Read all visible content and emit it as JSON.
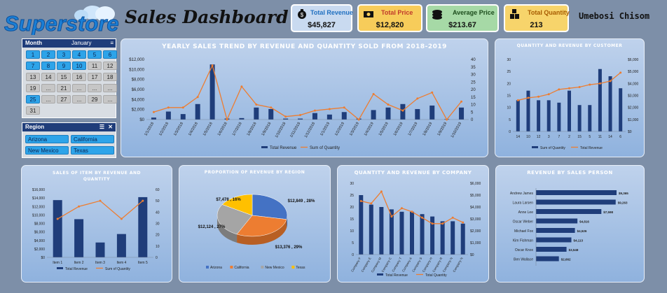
{
  "header": {
    "logo_text": "Superstore",
    "title": "Sales Dashboard",
    "author": "Umebosi Chisom"
  },
  "kpis": [
    {
      "label": "Total Revenue",
      "value": "$45,827",
      "color": "#1f6fc0",
      "bg": "#c9daf0"
    },
    {
      "label": "Total Price",
      "value": "$12,820",
      "color": "#c0392b",
      "bg": "#f7cc5a"
    },
    {
      "label": "Average Price",
      "value": "$213.67",
      "color": "#1c4c1c",
      "bg": "#a6d9a6"
    },
    {
      "label": "Total Quantity",
      "value": "213",
      "color": "#a75b00",
      "bg": "#f7d46b"
    }
  ],
  "month_slicer": {
    "title": "Month",
    "selected": "January",
    "days": [
      "1",
      "2",
      "3",
      "4",
      "5",
      "6",
      "7",
      "8",
      "9",
      "10",
      "11",
      "12",
      "13",
      "14",
      "15",
      "16",
      "17",
      "18",
      "19",
      "...",
      "21",
      "...",
      "...",
      "...",
      "25",
      "...",
      "27",
      "...",
      "29",
      "...",
      "31"
    ],
    "active": [
      0,
      1,
      2,
      3,
      4,
      5,
      6,
      7,
      8,
      9,
      24
    ]
  },
  "region_slicer": {
    "title": "Region",
    "items": [
      "Arizona",
      "California",
      "New Mexico",
      "Texas"
    ]
  },
  "charts": {
    "yearly": {
      "title": "YEARLY SALES TREND BY REVENUE AND QUANTITY SOLD FROM 2018-2019",
      "legend": [
        "Total Revenue",
        "Sum of Quantity"
      ],
      "y_ticks": [
        "$12,000",
        "$10,000",
        "$8,000",
        "$6,000",
        "$4,000",
        "$2,000",
        "$0"
      ],
      "y2_ticks": [
        "40",
        "35",
        "30",
        "25",
        "20",
        "15",
        "10",
        "5",
        "0"
      ],
      "x_labels": [
        "1/1/2018",
        "1/2/2018",
        "1/3/2018",
        "1/4/2018",
        "1/5/2018",
        "1/6/2018",
        "1/7/2018",
        "1/8/2018",
        "1/9/2018",
        "1/10/2018",
        "1/11/2018",
        "1/12/2018",
        "1/1/2019",
        "1/2/2019",
        "1/3/2019",
        "1/4/2019",
        "1/5/2019",
        "1/6/2019",
        "1/7/2019",
        "1/8/2019",
        "1/9/2019",
        "1/10/2019"
      ]
    },
    "customer": {
      "title": "QUANTITY AND REVENUE BY CUSTOMER",
      "legend": [
        "Sum of Quantity",
        "Total Revenue"
      ],
      "y_ticks": [
        "30",
        "25",
        "20",
        "15",
        "10",
        "5",
        "0"
      ],
      "y2_ticks": [
        "$6,000",
        "$5,000",
        "$4,000",
        "$3,000",
        "$2,000",
        "$1,000",
        "$0"
      ],
      "x_labels": [
        "14",
        "10",
        "12",
        "3",
        "7",
        "2",
        "15",
        "5",
        "11",
        "14",
        "6"
      ]
    },
    "items": {
      "title": "SALES OF ITEM BY REVENUE AND QUANTITY",
      "legend": [
        "Total Revenue",
        "Sum of Quantity"
      ],
      "y_ticks": [
        "$16,000",
        "$14,000",
        "$12,000",
        "$10,000",
        "$8,000",
        "$6,000",
        "$4,000",
        "$2,000",
        "$0"
      ],
      "y2_ticks": [
        "60",
        "50",
        "40",
        "30",
        "20",
        "10",
        "0"
      ],
      "x_labels": [
        "Item 1",
        "Item 2",
        "Item 3",
        "Item 4",
        "Item 5"
      ]
    },
    "region": {
      "title": "PROPORTION OF REVENUE BY REGION",
      "legend": [
        "Arizona",
        "California",
        "New Mexico",
        "Texas"
      ],
      "labels": [
        "$12,849 , 28%",
        "$13,376 , 29%",
        "$12,124 , 27%",
        "$7,478 , 16%"
      ]
    },
    "company": {
      "title": "QUANTITY AND REVENUE BY COMPANY",
      "legend": [
        "Total Revenue",
        "Total Quantity"
      ],
      "y_ticks": [
        "30",
        "25",
        "20",
        "15",
        "10",
        "5",
        "0"
      ],
      "y2_ticks": [
        "$6,000",
        "$5,000",
        "$4,000",
        "$3,000",
        "$2,000",
        "$1,000",
        "$0"
      ],
      "x_labels": [
        "Company F",
        "Company E",
        "Company M",
        "Company C",
        "Company T",
        "Company A",
        "Company S",
        "Company H",
        "Company R",
        "Company N",
        "Company N"
      ]
    },
    "salesperson": {
      "title": "REVENUE BY SALES PERSON",
      "names": [
        "Andrew James",
        "Laura Larsen",
        "Anne Lee",
        "Oscar Weber",
        "Michael Fox",
        "Kim Fishman",
        "Oscar Knox",
        "Ben Wallace"
      ],
      "labels": [
        "$9,365",
        "$9,263",
        "$7,598",
        "$4,816",
        "$4,526",
        "$4,113",
        "$3,548",
        "$2,662"
      ]
    }
  },
  "chart_data": [
    {
      "type": "bar",
      "title": "YEARLY SALES TREND BY REVENUE AND QUANTITY SOLD FROM 2018-2019",
      "categories": [
        "1/1/2018",
        "1/2/2018",
        "1/3/2018",
        "1/4/2018",
        "1/5/2018",
        "1/6/2018",
        "1/7/2018",
        "1/8/2018",
        "1/9/2018",
        "1/10/2018",
        "1/11/2018",
        "1/12/2018",
        "1/1/2019",
        "1/2/2019",
        "1/3/2019",
        "1/4/2019",
        "1/5/2019",
        "1/6/2019",
        "1/7/2019",
        "1/8/2019",
        "1/9/2019",
        "1/10/2019"
      ],
      "series": [
        {
          "name": "Total Revenue",
          "values": [
            400,
            1600,
            1100,
            3100,
            11000,
            200,
            300,
            2400,
            2100,
            200,
            200,
            1300,
            1000,
            1500,
            200,
            1900,
            2400,
            3100,
            2100,
            2800,
            100,
            2400
          ]
        },
        {
          "name": "Sum of Quantity",
          "values": [
            5,
            8,
            8,
            15,
            36,
            0,
            22,
            10,
            8,
            2,
            3,
            6,
            7,
            8,
            0,
            17,
            10,
            6,
            14,
            18,
            0,
            12
          ]
        }
      ],
      "ylim": [
        0,
        12000
      ],
      "y2lim": [
        0,
        40
      ]
    },
    {
      "type": "bar",
      "title": "QUANTITY AND REVENUE BY CUSTOMER",
      "categories": [
        "14",
        "10",
        "12",
        "3",
        "7",
        "2",
        "15",
        "5",
        "11",
        "14",
        "6"
      ],
      "series": [
        {
          "name": "Sum of Quantity",
          "values": [
            13,
            17,
            13,
            13,
            12,
            17,
            11,
            11,
            26,
            23,
            18
          ]
        },
        {
          "name": "Total Revenue",
          "values": [
            2600,
            2800,
            2900,
            3100,
            3500,
            3600,
            3700,
            3900,
            4000,
            4200,
            4900
          ]
        }
      ],
      "ylim": [
        0,
        30
      ],
      "y2lim": [
        0,
        6000
      ]
    },
    {
      "type": "bar",
      "title": "SALES OF ITEM BY REVENUE AND QUANTITY",
      "categories": [
        "Item 1",
        "Item 2",
        "Item 3",
        "Item 4",
        "Item 5"
      ],
      "series": [
        {
          "name": "Total Revenue",
          "values": [
            13500,
            9000,
            3500,
            5500,
            14200
          ]
        },
        {
          "name": "Sum of Quantity",
          "values": [
            34,
            45,
            50,
            34,
            50
          ]
        }
      ],
      "ylim": [
        0,
        16000
      ],
      "y2lim": [
        0,
        60
      ]
    },
    {
      "type": "pie",
      "title": "PROPORTION OF REVENUE BY REGION",
      "categories": [
        "Arizona",
        "California",
        "New Mexico",
        "Texas"
      ],
      "values": [
        12849,
        13376,
        12124,
        7478
      ],
      "colors": [
        "#4472c4",
        "#ed7d31",
        "#a5a5a5",
        "#ffc000"
      ]
    },
    {
      "type": "bar",
      "title": "QUANTITY AND REVENUE BY COMPANY",
      "categories": [
        "Company F",
        "Company E",
        "Company M",
        "Company C",
        "Company T",
        "Company A",
        "Company S",
        "Company H",
        "Company R",
        "Company N",
        "Company N"
      ],
      "series": [
        {
          "name": "Total Revenue",
          "values": [
            25,
            21,
            20,
            19,
            18,
            18,
            17,
            16,
            14,
            14,
            13
          ]
        },
        {
          "name": "Total Quantity",
          "values": [
            4500,
            4300,
            5300,
            3200,
            3900,
            3600,
            3100,
            2600,
            2600,
            3100,
            2700
          ]
        }
      ],
      "ylim": [
        0,
        30
      ],
      "y2lim": [
        0,
        6000
      ]
    },
    {
      "type": "bar",
      "title": "REVENUE BY SALES PERSON",
      "categories": [
        "Andrew James",
        "Laura Larsen",
        "Anne Lee",
        "Oscar Weber",
        "Michael Fox",
        "Kim Fishman",
        "Oscar Knox",
        "Ben Wallace"
      ],
      "values": [
        9365,
        9263,
        7598,
        4816,
        4526,
        4113,
        3548,
        2662
      ]
    }
  ],
  "colors": {
    "bar": "#1f3d7a",
    "line": "#ed7d31"
  }
}
